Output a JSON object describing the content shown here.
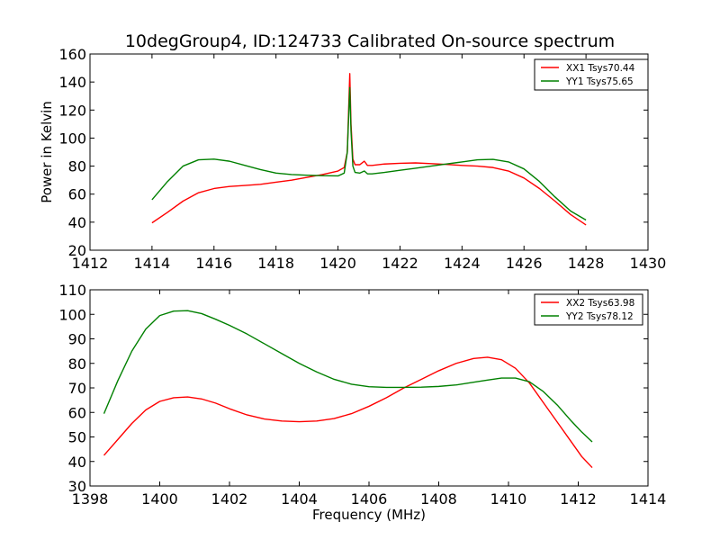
{
  "figure_title": "10degGroup4, ID:124733 Calibrated On-source spectrum",
  "chart_data": [
    {
      "type": "line",
      "title": "",
      "xlabel": "",
      "ylabel": "Power in Kelvin",
      "xlim": [
        1412,
        1430
      ],
      "ylim": [
        20,
        160
      ],
      "xticks": [
        1412,
        1414,
        1416,
        1418,
        1420,
        1422,
        1424,
        1426,
        1428,
        1430
      ],
      "yticks": [
        20,
        40,
        60,
        80,
        100,
        120,
        140,
        160
      ],
      "legend": "top-right",
      "series": [
        {
          "name": "XX1 Tsys70.44",
          "color": "#ff0000",
          "x": [
            1414,
            1414.5,
            1415,
            1415.5,
            1416,
            1416.5,
            1417,
            1417.5,
            1418,
            1418.5,
            1419,
            1419.5,
            1420,
            1420.2,
            1420.3,
            1420.38,
            1420.42,
            1420.48,
            1420.55,
            1420.7,
            1420.85,
            1420.95,
            1421.1,
            1421.5,
            1422,
            1422.5,
            1423,
            1423.5,
            1424,
            1424.5,
            1425,
            1425.5,
            1426,
            1426.5,
            1427,
            1427.5,
            1428
          ],
          "y": [
            39.5,
            47,
            55,
            61,
            64,
            65.5,
            66.2,
            67,
            68.5,
            70,
            72,
            74,
            76.5,
            79,
            90,
            146,
            110,
            85,
            81,
            81,
            83.5,
            80.5,
            80.5,
            81.5,
            82,
            82.3,
            81.8,
            81.2,
            80.5,
            80,
            79,
            76.5,
            71.5,
            64,
            55,
            45.5,
            38
          ]
        },
        {
          "name": "YY1 Tsys75.65",
          "color": "#008000",
          "x": [
            1414,
            1414.5,
            1415,
            1415.5,
            1416,
            1416.5,
            1417,
            1417.5,
            1418,
            1418.5,
            1419,
            1419.5,
            1420,
            1420.2,
            1420.3,
            1420.38,
            1420.42,
            1420.48,
            1420.55,
            1420.7,
            1420.85,
            1420.95,
            1421.1,
            1421.5,
            1422,
            1422.5,
            1423,
            1423.5,
            1424,
            1424.5,
            1425,
            1425.5,
            1426,
            1426.5,
            1427,
            1427.5,
            1428
          ],
          "y": [
            56,
            69,
            80,
            84.5,
            85,
            83.5,
            80.5,
            77.5,
            75,
            74,
            73.5,
            73.2,
            73,
            75,
            90,
            136,
            105,
            80,
            75.5,
            75,
            76.5,
            74.5,
            74.5,
            75.5,
            77,
            78.5,
            80,
            81.5,
            83,
            84.5,
            84.8,
            83,
            78,
            69,
            58,
            48,
            41.5
          ]
        }
      ]
    },
    {
      "type": "line",
      "title": "",
      "xlabel": "Frequency (MHz)",
      "ylabel": "",
      "xlim": [
        1398,
        1414
      ],
      "ylim": [
        30,
        110
      ],
      "xticks": [
        1398,
        1400,
        1402,
        1404,
        1406,
        1408,
        1410,
        1412,
        1414
      ],
      "yticks": [
        30,
        40,
        50,
        60,
        70,
        80,
        90,
        100,
        110
      ],
      "legend": "top-right",
      "series": [
        {
          "name": "XX2 Tsys63.98",
          "color": "#ff0000",
          "x": [
            1398.4,
            1398.8,
            1399.2,
            1399.6,
            1400,
            1400.4,
            1400.8,
            1401.2,
            1401.6,
            1402,
            1402.5,
            1403,
            1403.5,
            1404,
            1404.5,
            1405,
            1405.5,
            1406,
            1406.5,
            1407,
            1407.5,
            1408,
            1408.5,
            1409,
            1409.4,
            1409.8,
            1410.2,
            1410.6,
            1411,
            1411.4,
            1411.8,
            1412.1,
            1412.4
          ],
          "y": [
            42.5,
            49,
            55.5,
            61,
            64.5,
            66,
            66.3,
            65.5,
            63.8,
            61.5,
            59,
            57.3,
            56.5,
            56.2,
            56.5,
            57.5,
            59.5,
            62.5,
            66,
            70,
            73.5,
            77,
            80,
            82,
            82.5,
            81.5,
            78,
            72,
            64,
            56,
            48,
            42,
            37.5
          ]
        },
        {
          "name": "YY2 Tsys78.12",
          "color": "#008000",
          "x": [
            1398.4,
            1398.8,
            1399.2,
            1399.6,
            1400,
            1400.4,
            1400.8,
            1401.2,
            1401.6,
            1402,
            1402.5,
            1403,
            1403.5,
            1404,
            1404.5,
            1405,
            1405.5,
            1406,
            1406.5,
            1407,
            1407.5,
            1408,
            1408.5,
            1409,
            1409.4,
            1409.8,
            1410.2,
            1410.6,
            1411,
            1411.4,
            1411.8,
            1412.1,
            1412.4
          ],
          "y": [
            59.5,
            73,
            85,
            94,
            99.5,
            101.3,
            101.5,
            100.3,
            98,
            95.5,
            92,
            88,
            84,
            80,
            76.5,
            73.5,
            71.5,
            70.5,
            70.2,
            70.2,
            70.3,
            70.6,
            71.2,
            72.3,
            73.2,
            74,
            74,
            72.5,
            68.5,
            63,
            56.5,
            52,
            48
          ]
        }
      ]
    }
  ]
}
